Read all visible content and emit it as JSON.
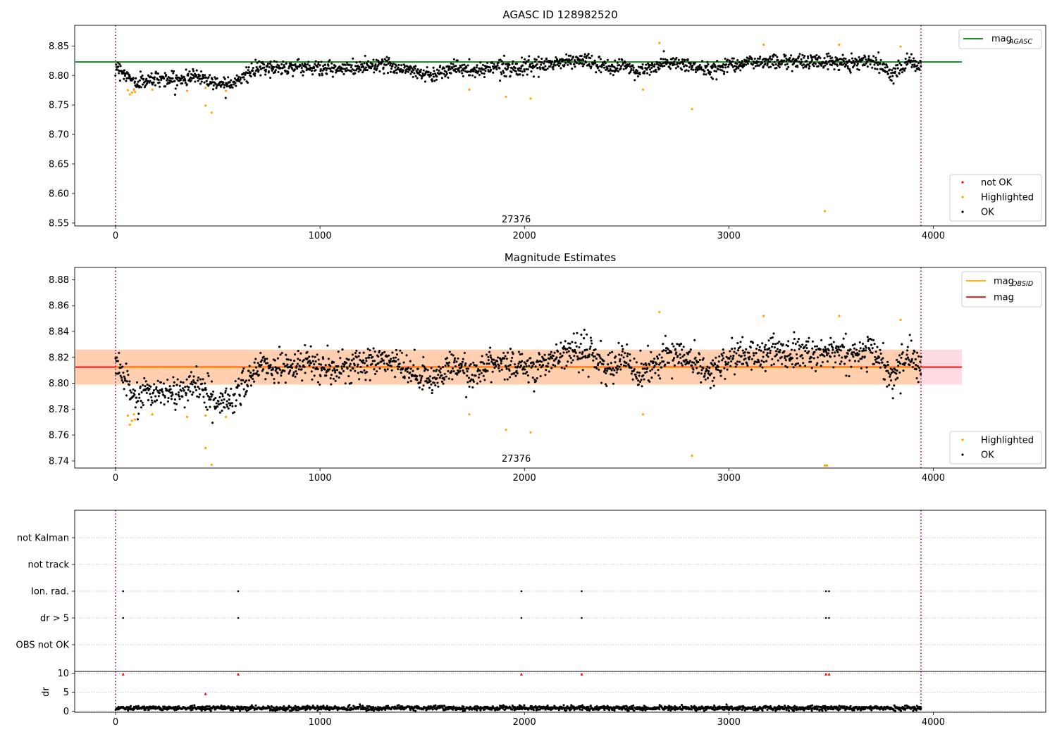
{
  "figure": {
    "background": "#ffffff"
  },
  "chart_data": [
    {
      "id": "agasc",
      "type": "scatter",
      "title": "AGASC ID 128982520",
      "xlabel": "",
      "ylabel": "",
      "xlim": [
        -200,
        4550
      ],
      "ylim": [
        8.545,
        8.885
      ],
      "xticks": [
        0,
        1000,
        2000,
        3000,
        4000
      ],
      "yticks": [
        8.55,
        8.6,
        8.65,
        8.7,
        8.75,
        8.8,
        8.85
      ],
      "ytick_format": 2,
      "grid": false,
      "obs_annotation": {
        "text": "27376",
        "x": 1960,
        "y": 8.551
      },
      "vlines": [
        0,
        3940
      ],
      "vline_color": "#800080",
      "hline": {
        "value": 8.823,
        "x_range": [
          -200,
          4140
        ],
        "color": "#008000"
      },
      "line_legend": {
        "placement": "upper right",
        "entries": [
          {
            "label": "mag",
            "sub": "AGASC",
            "color": "#008000"
          }
        ]
      },
      "marker_legend": {
        "placement": "lower right",
        "entries": [
          {
            "label": "not OK",
            "color": "#ff0000"
          },
          {
            "label": "Highlighted",
            "color": "#ffa500"
          },
          {
            "label": "OK",
            "color": "#000000"
          }
        ]
      },
      "series": [
        {
          "name": "OK",
          "color": "#000000",
          "generated": true,
          "trend_x": [
            0,
            30,
            100,
            200,
            300,
            400,
            500,
            580,
            700,
            900,
            1100,
            1300,
            1450,
            1550,
            1650,
            1750,
            1850,
            2000,
            2200,
            2300,
            2400,
            2500,
            2550,
            2600,
            2700,
            2800,
            2900,
            3000,
            3200,
            3400,
            3600,
            3700,
            3800,
            3880,
            3940
          ],
          "trend_y": [
            8.817,
            8.808,
            8.786,
            8.796,
            8.792,
            8.8,
            8.786,
            8.79,
            8.812,
            8.815,
            8.81,
            8.82,
            8.808,
            8.8,
            8.815,
            8.806,
            8.816,
            8.812,
            8.824,
            8.826,
            8.812,
            8.818,
            8.806,
            8.81,
            8.822,
            8.818,
            8.808,
            8.82,
            8.824,
            8.824,
            8.822,
            8.826,
            8.805,
            8.823,
            8.815
          ],
          "scatter": 0.01,
          "count": 1750
        },
        {
          "name": "Highlighted",
          "color": "#ffa500",
          "points": [
            [
              60,
              8.775
            ],
            [
              70,
              8.768
            ],
            [
              80,
              8.771
            ],
            [
              90,
              8.776
            ],
            [
              95,
              8.772
            ],
            [
              180,
              8.776
            ],
            [
              350,
              8.774
            ],
            [
              440,
              8.779
            ],
            [
              440,
              8.749
            ],
            [
              470,
              8.737
            ],
            [
              540,
              8.774
            ],
            [
              1730,
              8.776
            ],
            [
              1910,
              8.764
            ],
            [
              2030,
              8.761
            ],
            [
              2580,
              8.776
            ],
            [
              2660,
              8.855
            ],
            [
              2820,
              8.743
            ],
            [
              3170,
              8.852
            ],
            [
              3470,
              8.57
            ],
            [
              3540,
              8.852
            ],
            [
              3840,
              8.849
            ]
          ]
        }
      ]
    },
    {
      "id": "estimates",
      "type": "scatter",
      "title": "Magnitude Estimates",
      "xlabel": "",
      "ylabel": "",
      "xlim": [
        -200,
        4550
      ],
      "ylim": [
        8.7345,
        8.8895
      ],
      "xticks": [
        0,
        1000,
        2000,
        3000,
        4000
      ],
      "yticks": [
        8.74,
        8.76,
        8.78,
        8.8,
        8.82,
        8.84,
        8.86,
        8.88
      ],
      "ytick_format": 2,
      "grid": false,
      "obs_annotation": {
        "text": "27376",
        "x": 1960,
        "y": 8.7395
      },
      "vlines": [
        0,
        3940
      ],
      "vline_color": "#800080",
      "bands": [
        {
          "y0": 8.799,
          "y1": 8.826,
          "x_range": [
            -200,
            4140
          ],
          "color": "#ffc0cb",
          "opacity": 0.55
        },
        {
          "y0": 8.799,
          "y1": 8.826,
          "x_range": [
            -200,
            3940
          ],
          "color": "#ffa500",
          "opacity": 0.22
        }
      ],
      "hlines": [
        {
          "value": 8.8125,
          "x_range": [
            -200,
            4140
          ],
          "color": "#ff0000"
        },
        {
          "value": 8.8122,
          "x_range": [
            0,
            3940
          ],
          "color": "#ffa500"
        }
      ],
      "line_legend": {
        "placement": "upper right",
        "entries": [
          {
            "label": "mag",
            "sub": "OBSID",
            "color": "#ffa500"
          },
          {
            "label": "mag",
            "sub": "",
            "color": "#ff0000"
          }
        ]
      },
      "marker_legend": {
        "placement": "lower right",
        "entries": [
          {
            "label": "Highlighted",
            "color": "#ffa500"
          },
          {
            "label": "OK",
            "color": "#000000"
          }
        ]
      },
      "series": [
        {
          "name": "OK",
          "color": "#000000",
          "generated": true,
          "trend_x": [
            0,
            30,
            100,
            200,
            300,
            400,
            500,
            580,
            700,
            900,
            1100,
            1300,
            1450,
            1550,
            1650,
            1750,
            1850,
            2000,
            2200,
            2300,
            2400,
            2500,
            2550,
            2600,
            2700,
            2800,
            2900,
            3000,
            3200,
            3400,
            3600,
            3700,
            3800,
            3880,
            3940
          ],
          "trend_y": [
            8.817,
            8.808,
            8.786,
            8.796,
            8.792,
            8.8,
            8.786,
            8.79,
            8.812,
            8.815,
            8.81,
            8.82,
            8.808,
            8.8,
            8.815,
            8.806,
            8.816,
            8.812,
            8.824,
            8.826,
            8.812,
            8.818,
            8.806,
            8.81,
            8.822,
            8.818,
            8.808,
            8.82,
            8.824,
            8.824,
            8.822,
            8.826,
            8.805,
            8.823,
            8.815
          ],
          "scatter": 0.01,
          "count": 1750
        },
        {
          "name": "Highlighted",
          "color": "#ffa500",
          "points": [
            [
              60,
              8.775
            ],
            [
              70,
              8.768
            ],
            [
              80,
              8.771
            ],
            [
              90,
              8.776
            ],
            [
              95,
              8.772
            ],
            [
              180,
              8.776
            ],
            [
              350,
              8.774
            ],
            [
              440,
              8.775
            ],
            [
              440,
              8.75
            ],
            [
              470,
              8.737
            ],
            [
              540,
              8.774
            ],
            [
              1730,
              8.776
            ],
            [
              1910,
              8.764
            ],
            [
              2030,
              8.762
            ],
            [
              2580,
              8.776
            ],
            [
              2660,
              8.855
            ],
            [
              2820,
              8.744
            ],
            [
              3170,
              8.852
            ],
            [
              3470,
              8.7365
            ],
            [
              3480,
              8.7365
            ],
            [
              3540,
              8.852
            ],
            [
              3840,
              8.849
            ]
          ]
        }
      ]
    },
    {
      "id": "flags",
      "type": "scatter",
      "title": "",
      "xlabel": "",
      "ylabel": "",
      "xlim": [
        -200,
        4550
      ],
      "categories": [
        "not Kalman",
        "not track",
        "Ion. rad.",
        "dr > 5",
        "OBS not OK"
      ],
      "grid": true,
      "vlines": [
        0,
        3940
      ],
      "vline_color": "#800080",
      "series": [
        {
          "name": "Ion. rad.",
          "color": "#000000",
          "x": [
            37,
            600,
            1985,
            2280,
            3475,
            3490
          ]
        },
        {
          "name": "dr > 5",
          "color": "#000000",
          "x": [
            37,
            600,
            1985,
            2280,
            3475,
            3490
          ]
        }
      ]
    },
    {
      "id": "dr",
      "type": "scatter",
      "title": "",
      "xlabel": "",
      "ylabel": "dr",
      "xlim": [
        -200,
        4550
      ],
      "ylim": [
        -0.3,
        10.5
      ],
      "xticks": [
        0,
        1000,
        2000,
        3000,
        4000
      ],
      "yticks": [
        0,
        5,
        10
      ],
      "ytick_format": 0,
      "grid": true,
      "vlines": [
        0,
        3940
      ],
      "vline_color": "#800080",
      "series": [
        {
          "name": "dr",
          "color": "#000000",
          "generated": true,
          "baseline": 0.8,
          "scatter": 0.5,
          "count": 1750,
          "x_range": [
            0,
            3940
          ]
        },
        {
          "name": "clipped",
          "color": "#ff0000",
          "points": [
            [
              37,
              9.8
            ],
            [
              600,
              9.8
            ],
            [
              1985,
              9.8
            ],
            [
              2280,
              9.8
            ],
            [
              3475,
              9.8
            ],
            [
              3490,
              9.8
            ],
            [
              440,
              4.6
            ]
          ]
        }
      ]
    }
  ]
}
